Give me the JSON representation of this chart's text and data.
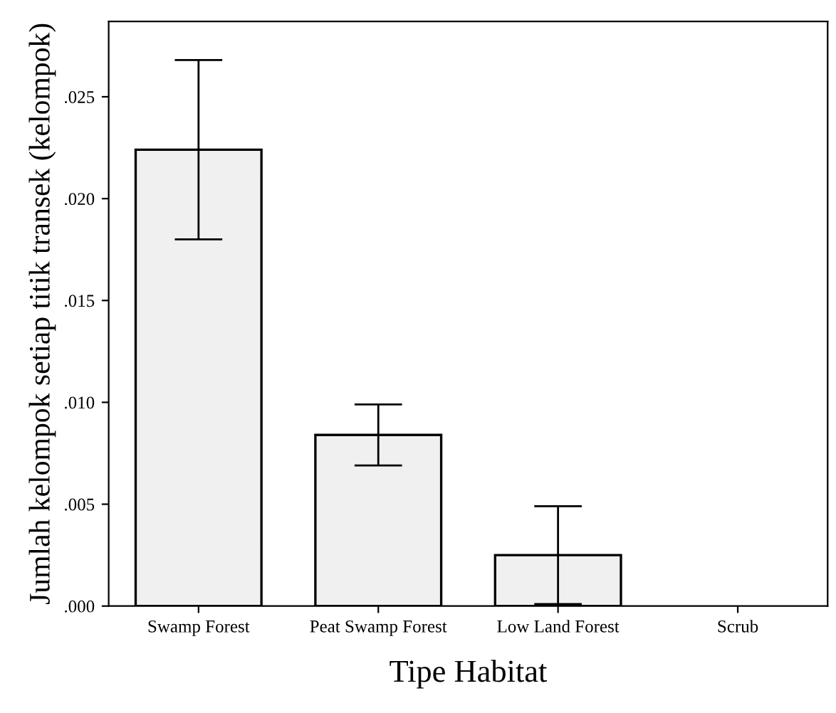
{
  "chart_data": {
    "type": "bar",
    "xlabel": "Tipe Habitat",
    "ylabel": "Jumlah kelompok setiap titik transek (kelompok)",
    "categories": [
      "Swamp Forest",
      "Peat Swamp Forest",
      "Low Land Forest",
      "Scrub"
    ],
    "values": [
      0.0224,
      0.0084,
      0.0025,
      0
    ],
    "errors": [
      [
        0.018,
        0.0268
      ],
      [
        0.0069,
        0.0099
      ],
      [
        0.0001,
        0.0049
      ],
      null
    ],
    "color": "#f0f0f0",
    "ylim": [
      0,
      0.0287
    ],
    "yticks": [
      {
        "value": 0,
        "label": ".000"
      },
      {
        "value": 0.005,
        "label": ".005"
      },
      {
        "value": 0.01,
        "label": ".010"
      },
      {
        "value": 0.015,
        "label": ".015"
      },
      {
        "value": 0.02,
        "label": ".020"
      },
      {
        "value": 0.025,
        "label": ".025"
      }
    ],
    "grid": false,
    "legend": false
  }
}
